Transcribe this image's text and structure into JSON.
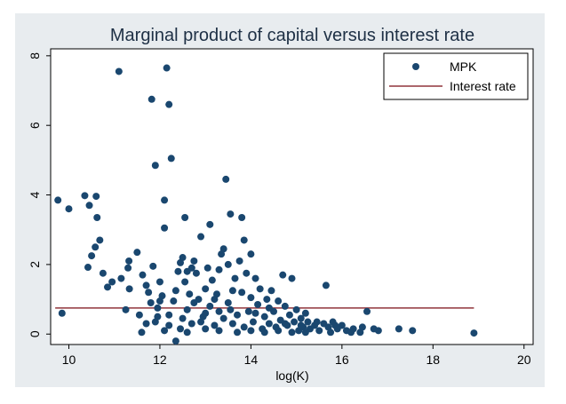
{
  "chart_data": {
    "type": "scatter",
    "title": "Marginal product of capital versus interest rate",
    "xlabel": "log(K)",
    "ylabel": "",
    "xlim": [
      9.6,
      20.2
    ],
    "ylim": [
      -0.3,
      8.2
    ],
    "x_ticks": [
      10,
      12,
      14,
      16,
      18,
      20
    ],
    "y_ticks": [
      0,
      2,
      4,
      6,
      8
    ],
    "grid": false,
    "legend_position": "top-right",
    "colors": {
      "outer_background": "#e8ecef",
      "plot_background": "#ffffff",
      "title": "#1e3045",
      "points": "#1a476f",
      "line": "#90353b"
    },
    "legend": [
      {
        "label": "MPK",
        "marker": "circle"
      },
      {
        "label": "Interest rate",
        "marker": "line"
      }
    ],
    "series": [
      {
        "name": "MPK",
        "kind": "scatter",
        "points": [
          [
            9.76,
            3.85
          ],
          [
            9.85,
            0.6
          ],
          [
            10.0,
            3.6
          ],
          [
            10.35,
            3.98
          ],
          [
            10.45,
            3.7
          ],
          [
            10.5,
            2.25
          ],
          [
            10.42,
            1.92
          ],
          [
            10.6,
            3.96
          ],
          [
            10.62,
            3.35
          ],
          [
            10.58,
            2.5
          ],
          [
            10.68,
            2.7
          ],
          [
            10.75,
            1.75
          ],
          [
            10.85,
            1.35
          ],
          [
            10.95,
            1.5
          ],
          [
            11.1,
            7.55
          ],
          [
            11.15,
            1.6
          ],
          [
            11.3,
            1.9
          ],
          [
            11.32,
            2.1
          ],
          [
            11.25,
            0.7
          ],
          [
            11.33,
            1.3
          ],
          [
            11.5,
            2.35
          ],
          [
            11.55,
            0.55
          ],
          [
            11.6,
            0.05
          ],
          [
            11.62,
            1.7
          ],
          [
            11.7,
            1.4
          ],
          [
            11.75,
            1.2
          ],
          [
            11.8,
            0.9
          ],
          [
            11.82,
            6.75
          ],
          [
            11.9,
            4.85
          ],
          [
            11.85,
            1.95
          ],
          [
            11.9,
            0.35
          ],
          [
            11.95,
            0.75
          ],
          [
            12.0,
            1.5
          ],
          [
            12.05,
            1.1
          ],
          [
            12.1,
            3.05
          ],
          [
            12.1,
            3.85
          ],
          [
            12.15,
            7.65
          ],
          [
            12.2,
            6.6
          ],
          [
            12.25,
            5.05
          ],
          [
            12.1,
            0.1
          ],
          [
            12.2,
            0.55
          ],
          [
            12.3,
            0.95
          ],
          [
            12.35,
            1.25
          ],
          [
            12.4,
            1.8
          ],
          [
            12.45,
            2.05
          ],
          [
            12.5,
            2.2
          ],
          [
            12.5,
            0.45
          ],
          [
            12.55,
            3.35
          ],
          [
            12.55,
            1.5
          ],
          [
            12.6,
            1.8
          ],
          [
            12.6,
            0.7
          ],
          [
            12.65,
            1.15
          ],
          [
            12.7,
            1.9
          ],
          [
            12.7,
            0.3
          ],
          [
            12.75,
            2.1
          ],
          [
            12.75,
            0.9
          ],
          [
            12.8,
            1.75
          ],
          [
            12.85,
            1.0
          ],
          [
            12.9,
            2.8
          ],
          [
            12.95,
            0.5
          ],
          [
            13.0,
            1.3
          ],
          [
            13.0,
            0.15
          ],
          [
            13.05,
            1.9
          ],
          [
            13.1,
            3.15
          ],
          [
            13.1,
            0.8
          ],
          [
            13.15,
            1.55
          ],
          [
            13.2,
            0.25
          ],
          [
            13.25,
            1.15
          ],
          [
            13.3,
            0.65
          ],
          [
            13.3,
            1.85
          ],
          [
            13.35,
            2.3
          ],
          [
            13.4,
            2.45
          ],
          [
            13.4,
            0.45
          ],
          [
            13.45,
            4.45
          ],
          [
            13.5,
            2.0
          ],
          [
            13.5,
            0.9
          ],
          [
            13.55,
            3.45
          ],
          [
            13.6,
            1.25
          ],
          [
            13.6,
            0.3
          ],
          [
            13.65,
            1.6
          ],
          [
            13.7,
            0.55
          ],
          [
            13.75,
            2.1
          ],
          [
            13.8,
            3.35
          ],
          [
            13.8,
            1.2
          ],
          [
            13.85,
            2.7
          ],
          [
            13.85,
            0.2
          ],
          [
            13.9,
            1.75
          ],
          [
            13.95,
            0.65
          ],
          [
            14.0,
            2.3
          ],
          [
            14.0,
            1.05
          ],
          [
            14.05,
            0.35
          ],
          [
            14.1,
            1.6
          ],
          [
            14.15,
            0.85
          ],
          [
            14.2,
            1.3
          ],
          [
            14.25,
            0.15
          ],
          [
            14.3,
            0.5
          ],
          [
            14.35,
            1.0
          ],
          [
            14.4,
            0.3
          ],
          [
            14.45,
            1.25
          ],
          [
            14.5,
            0.65
          ],
          [
            14.55,
            0.2
          ],
          [
            14.6,
            0.95
          ],
          [
            14.65,
            0.4
          ],
          [
            14.7,
            1.7
          ],
          [
            14.75,
            0.8
          ],
          [
            14.8,
            0.25
          ],
          [
            14.85,
            0.55
          ],
          [
            14.9,
            1.6
          ],
          [
            14.95,
            0.35
          ],
          [
            15.0,
            0.7
          ],
          [
            15.05,
            0.1
          ],
          [
            15.1,
            0.45
          ],
          [
            15.15,
            0.2
          ],
          [
            15.2,
            0.6
          ],
          [
            15.25,
            0.35
          ],
          [
            15.3,
            0.15
          ],
          [
            15.4,
            0.25
          ],
          [
            15.5,
            0.1
          ],
          [
            15.6,
            0.3
          ],
          [
            15.65,
            1.4
          ],
          [
            15.7,
            0.2
          ],
          [
            15.75,
            0.05
          ],
          [
            15.8,
            0.35
          ],
          [
            15.9,
            0.15
          ],
          [
            16.0,
            0.25
          ],
          [
            16.1,
            0.1
          ],
          [
            16.25,
            0.15
          ],
          [
            16.4,
            0.05
          ],
          [
            16.45,
            0.2
          ],
          [
            16.55,
            0.65
          ],
          [
            16.7,
            0.15
          ],
          [
            16.8,
            0.1
          ],
          [
            17.25,
            0.15
          ],
          [
            17.55,
            0.1
          ],
          [
            18.9,
            0.03
          ],
          [
            12.35,
            -0.2
          ],
          [
            12.6,
            0.05
          ],
          [
            13.0,
            0.6
          ],
          [
            13.3,
            0.1
          ],
          [
            13.7,
            0.05
          ],
          [
            14.0,
            0.1
          ],
          [
            14.3,
            0.05
          ],
          [
            14.6,
            0.1
          ],
          [
            14.9,
            0.05
          ],
          [
            15.2,
            0.05
          ],
          [
            12.9,
            0.35
          ],
          [
            13.2,
            1.0
          ],
          [
            13.55,
            0.7
          ],
          [
            14.1,
            0.6
          ],
          [
            14.4,
            0.75
          ],
          [
            14.75,
            0.3
          ],
          [
            15.1,
            0.25
          ],
          [
            15.45,
            0.35
          ],
          [
            15.85,
            0.25
          ],
          [
            16.2,
            0.05
          ],
          [
            12.45,
            0.15
          ],
          [
            11.95,
            0.5
          ],
          [
            11.7,
            0.3
          ],
          [
            12.0,
            0.95
          ],
          [
            12.2,
            0.25
          ]
        ]
      },
      {
        "name": "Interest rate",
        "kind": "line",
        "points": [
          [
            9.7,
            0.75
          ],
          [
            18.9,
            0.75
          ]
        ]
      }
    ]
  }
}
